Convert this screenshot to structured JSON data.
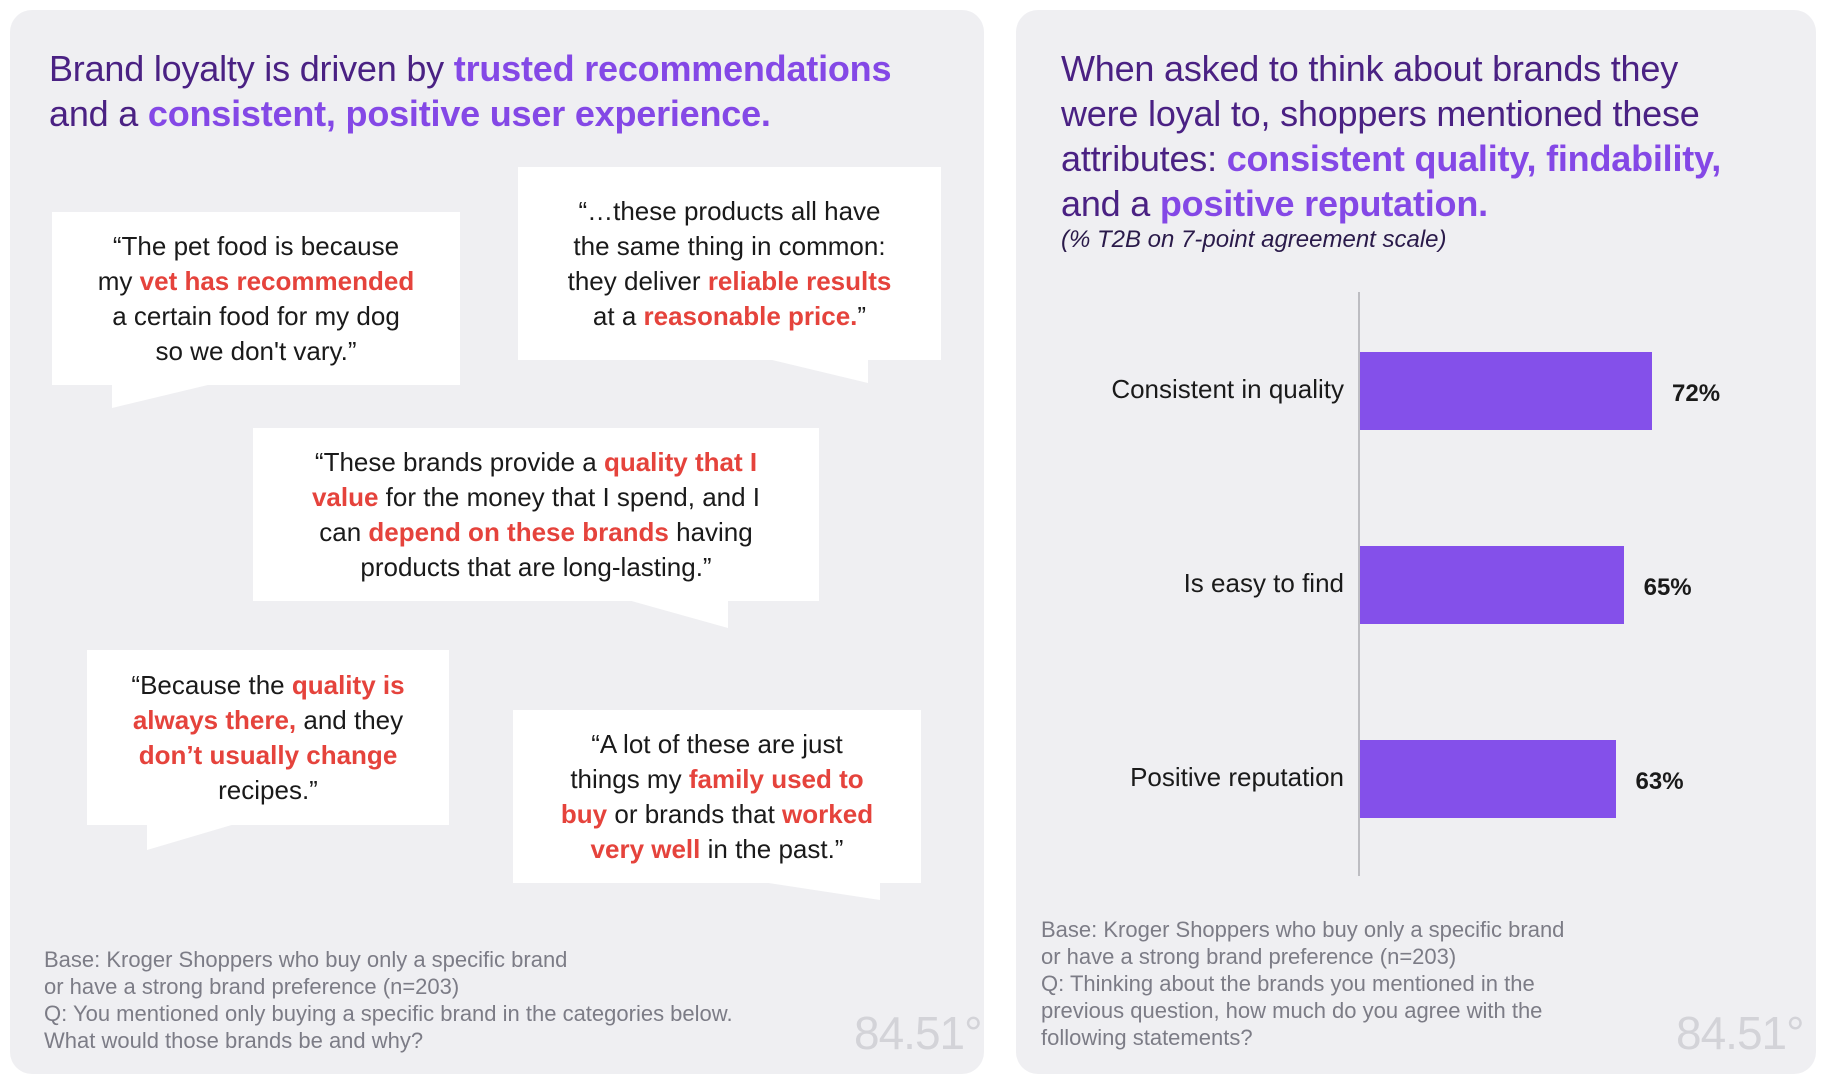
{
  "left": {
    "title": {
      "part1": "Brand loyalty is driven by ",
      "hl1": "trusted recommendations",
      "part2": "and a ",
      "hl2": "consistent, positive user experience."
    },
    "quote1": {
      "l1": "“The pet food is because",
      "l2a": "my ",
      "l2b": "vet has recommended",
      "l3": "a certain food for my dog",
      "l4": "so we don't vary.”"
    },
    "quote2": {
      "l1": "“…these products all have",
      "l2": "the same thing in common:",
      "l3a": "they deliver ",
      "l3b": "reliable results",
      "l4a": "at a ",
      "l4b": "reasonable price.",
      "l4c": "”"
    },
    "quote3": {
      "l1a": "“These brands provide a ",
      "l1b": "quality that I",
      "l2a": "value",
      "l2b": " for the money that I spend, and I",
      "l3a": "can ",
      "l3b": "depend on these brands",
      "l3c": " having",
      "l4": "products that are long-lasting.”"
    },
    "quote4": {
      "l1a": "“Because the ",
      "l1b": "quality is",
      "l2a": "always there,",
      "l2b": " and they",
      "l3": "don’t usually change",
      "l4": "recipes.”"
    },
    "quote5": {
      "l1": "“A lot of these are just",
      "l2a": "things my ",
      "l2b": "family used to",
      "l3a": "buy",
      "l3b": " or brands that ",
      "l3c": "worked",
      "l4a": "very well",
      "l4b": " in the past.”"
    },
    "footnote": {
      "l1": "Base: Kroger Shoppers who buy only a specific brand",
      "l2": "or have a strong brand preference (n=203)",
      "l3": "Q: You mentioned only buying a specific brand in the categories below.",
      "l4": "What would those brands be and why?"
    },
    "logo": "84.51°"
  },
  "right": {
    "title": {
      "l1": "When asked to think about brands they",
      "l2": "were loyal to, shoppers mentioned these",
      "l3a": "attributes: ",
      "l3b": "consistent quality, findability,",
      "l4a": "and a ",
      "l4b": "positive reputation."
    },
    "subtitle": "(% T2B on 7-point agreement scale)",
    "footnote": {
      "l1": "Base: Kroger Shoppers who buy only a specific brand",
      "l2": "or have a strong brand preference (n=203)",
      "l3": "Q: Thinking about the brands you mentioned in the",
      "l4": "previous question, how much do you agree with the",
      "l5": "following statements?"
    },
    "logo": "84.51°"
  },
  "colors": {
    "accent": "#8448e6",
    "bar": "#8450ea",
    "quote_highlight": "#e5433c",
    "title": "#4a2183"
  },
  "chart_data": {
    "type": "bar",
    "orientation": "horizontal",
    "categories": [
      "Consistent in quality",
      "Is easy to find",
      "Positive reputation"
    ],
    "values": [
      72,
      65,
      63
    ],
    "value_labels": [
      "72%",
      "65%",
      "63%"
    ],
    "unit": "%",
    "xlim": [
      0,
      100
    ],
    "title": "When asked to think about brands they were loyal to, shoppers mentioned these attributes: consistent quality, findability, and a positive reputation.",
    "subtitle": "(% T2B on 7-point agreement scale)"
  }
}
